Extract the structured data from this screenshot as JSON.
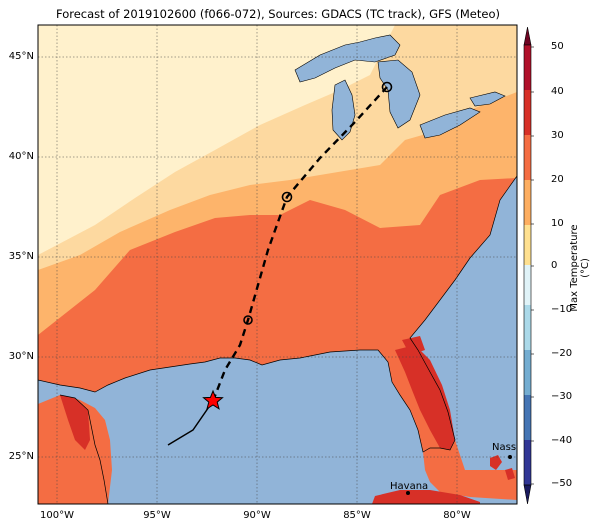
{
  "title": "Forecast of 2019102600 (f066-072), Sources: GDACS (TC track), GFS (Meteo)",
  "colorbar": {
    "label": "Max Temperature (°C)",
    "ticks": [
      "50",
      "40",
      "30",
      "20",
      "10",
      "0",
      "−10",
      "−20",
      "−30",
      "−40",
      "−50"
    ],
    "colors": [
      "#6e0422",
      "#b0102a",
      "#d73027",
      "#f46d43",
      "#fdae61",
      "#fee090",
      "#e0f3f8",
      "#abd9e9",
      "#74add1",
      "#4575b4",
      "#313695"
    ]
  },
  "axes": {
    "lat_labels": [
      "45°N",
      "40°N",
      "35°N",
      "30°N",
      "25°N"
    ],
    "lon_labels": [
      "100°W",
      "95°W",
      "90°W",
      "85°W",
      "80°W"
    ]
  },
  "cities": [
    {
      "name": "Nassau"
    },
    {
      "name": "Havana"
    }
  ],
  "colors": {
    "land_cool": "#fff1cc",
    "land_warm": "#fdb46b",
    "land_hot": "#f46d43",
    "land_hottest": "#d73027",
    "water": "#91b4d8",
    "track": "#000000",
    "star": "#ff0000"
  }
}
